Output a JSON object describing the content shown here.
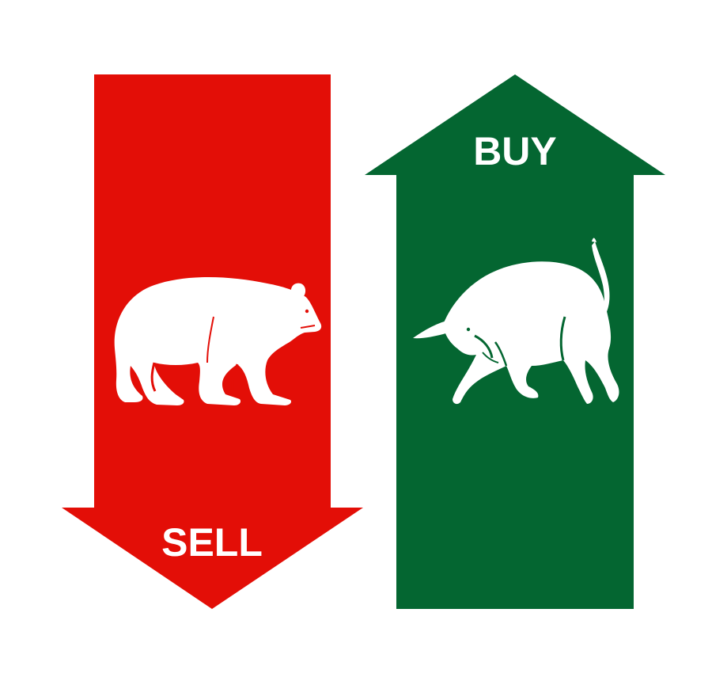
{
  "sell": {
    "label": "SELL",
    "color": "#e30e07",
    "animal": "bear-icon"
  },
  "buy": {
    "label": "BUY",
    "color": "#046631",
    "animal": "bull-icon"
  },
  "background": "#ffffff"
}
